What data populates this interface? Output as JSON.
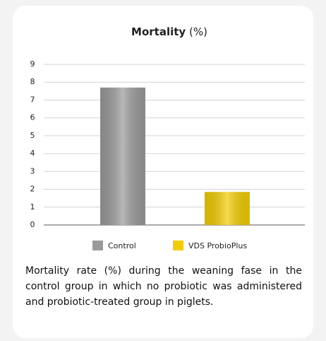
{
  "chart_data": {
    "type": "bar",
    "title": "Mortality",
    "title_unit": "(%)",
    "categories": [
      "Control",
      "VDS ProbioPlus"
    ],
    "values": [
      7.7,
      1.85
    ],
    "colors": [
      "#9a9a9a",
      "#f2cc00"
    ],
    "ylim": [
      0,
      9
    ],
    "yticks": [
      0,
      1,
      2,
      3,
      4,
      5,
      6,
      7,
      8,
      9
    ],
    "grid": true
  },
  "caption": "Mortality rate (%) during the weaning fase in the control group in which no probiotic was administered and probiotic-treated group in piglets."
}
